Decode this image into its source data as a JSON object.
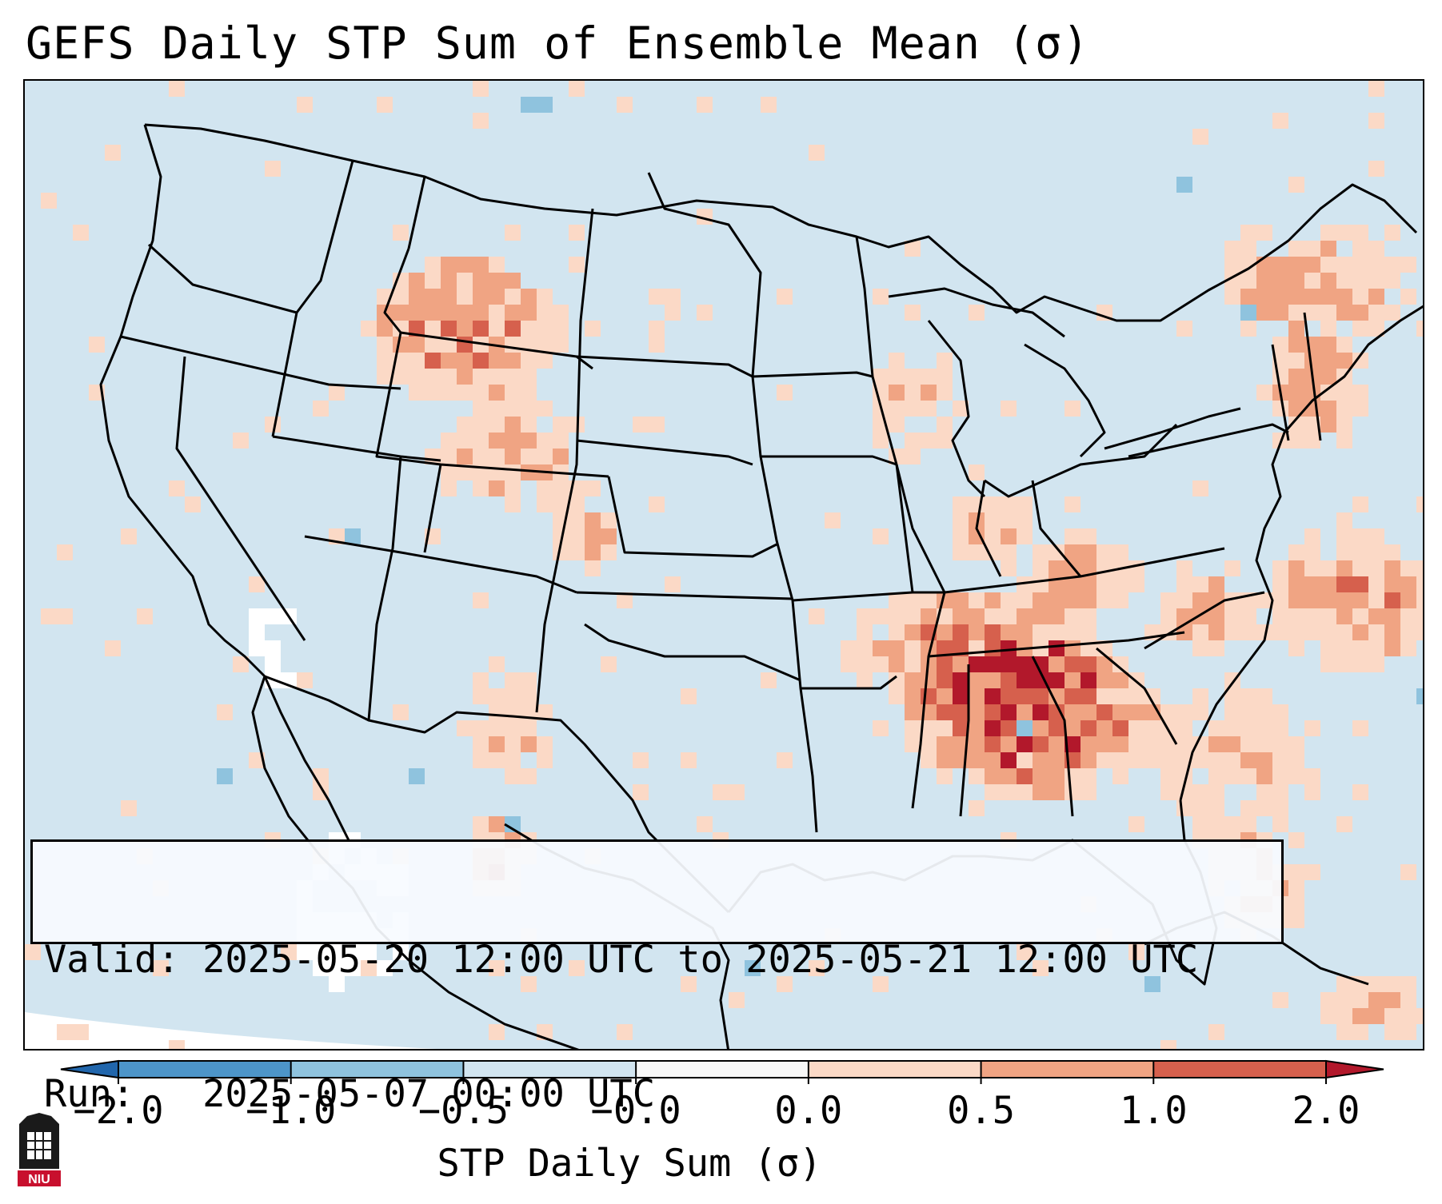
{
  "title": "GEFS Daily STP Sum of Ensemble Mean (σ)",
  "info": {
    "valid_label": "Valid:",
    "valid_range": "2025-05-20 12:00 UTC to 2025-05-21 12:00 UTC",
    "run_label": "Run:",
    "run_time": "2025-05-07 00:00 UTC"
  },
  "colorbar": {
    "label": "STP Daily Sum (σ)",
    "ticks": [
      "−2.0",
      "−1.0",
      "−0.5",
      "−0.0",
      "0.0",
      "0.5",
      "1.0",
      "2.0"
    ],
    "colors": [
      "#4d95c9",
      "#8fc3de",
      "#d2e5f0",
      "#f7f7f7",
      "#fbd9c6",
      "#f0a483",
      "#d6604d",
      "#b2182b"
    ],
    "extend_low_color": "#2166ac",
    "extend_high_color": "#b2182b"
  },
  "colors": {
    "background": "#d2e5f0",
    "light_positive": "#fbd9c6",
    "medium_positive": "#f0a483",
    "strong_positive": "#d6604d",
    "max_positive": "#b2182b",
    "light_negative": "#8fc3de",
    "white_zero": "#ffffff"
  },
  "logo": {
    "text": "NIU",
    "name": "niu-logo"
  }
}
